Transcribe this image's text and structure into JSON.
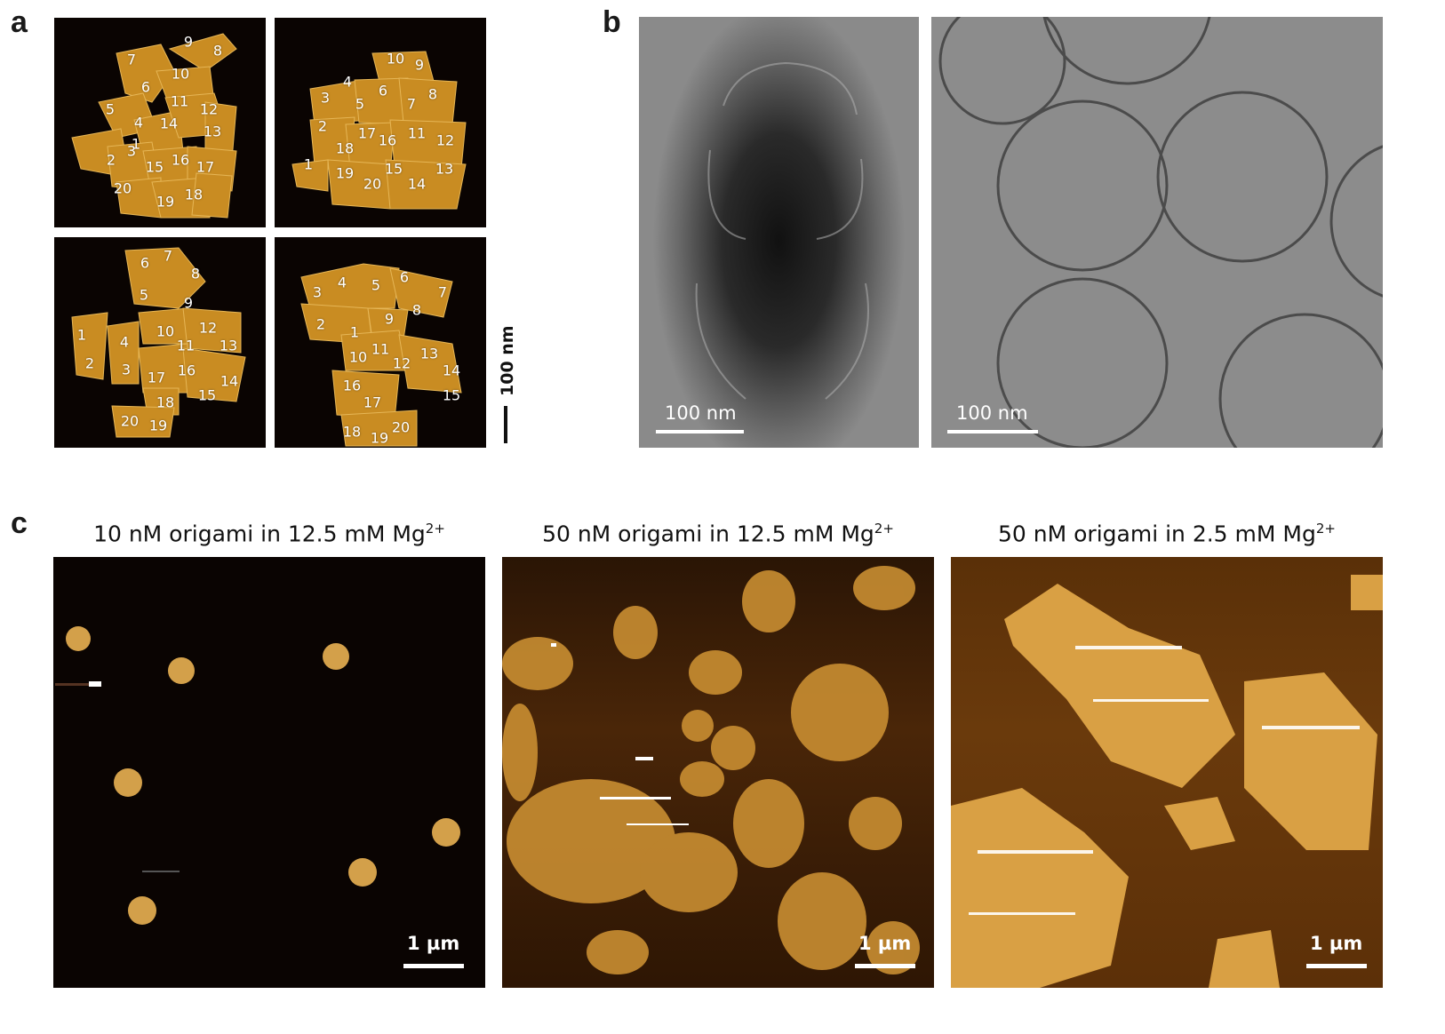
{
  "panels": {
    "a": {
      "letter": "a",
      "scale_label": "100 nm",
      "images": [
        {
          "labels": [
            "1",
            "2",
            "3",
            "4",
            "5",
            "6",
            "7",
            "8",
            "9",
            "10",
            "11",
            "12",
            "13",
            "14",
            "15",
            "16",
            "17",
            "18",
            "19",
            "20"
          ]
        },
        {
          "labels": [
            "1",
            "2",
            "3",
            "4",
            "5",
            "6",
            "7",
            "8",
            "9",
            "10",
            "11",
            "12",
            "13",
            "14",
            "15",
            "16",
            "17",
            "18",
            "19",
            "20"
          ]
        },
        {
          "labels": [
            "1",
            "2",
            "3",
            "4",
            "5",
            "6",
            "7",
            "8",
            "9",
            "10",
            "11",
            "12",
            "13",
            "14",
            "15",
            "16",
            "17",
            "18",
            "19",
            "20"
          ]
        },
        {
          "labels": [
            "1",
            "2",
            "3",
            "4",
            "5",
            "6",
            "7",
            "8",
            "9",
            "10",
            "11",
            "12",
            "13",
            "14",
            "15",
            "16",
            "17",
            "18",
            "19",
            "20"
          ]
        }
      ]
    },
    "b": {
      "letter": "b",
      "images": [
        {
          "scale_label": "100 nm"
        },
        {
          "scale_label": "100 nm"
        }
      ]
    },
    "c": {
      "letter": "c",
      "images": [
        {
          "title_main": "10 nM origami in 12.5 mM Mg",
          "title_sup": "2+",
          "scale_label": "1 µm"
        },
        {
          "title_main": "50 nM origami in 12.5 mM Mg",
          "title_sup": "2+",
          "scale_label": "1 µm"
        },
        {
          "title_main": "50 nM origami in 2.5 mM Mg",
          "title_sup": "2+",
          "scale_label": "1 µm"
        }
      ]
    }
  },
  "colors": {
    "afm_gold": "#d9a53a",
    "afm_dark": "#0a0402",
    "tem_gray": "#8a8a8a"
  }
}
